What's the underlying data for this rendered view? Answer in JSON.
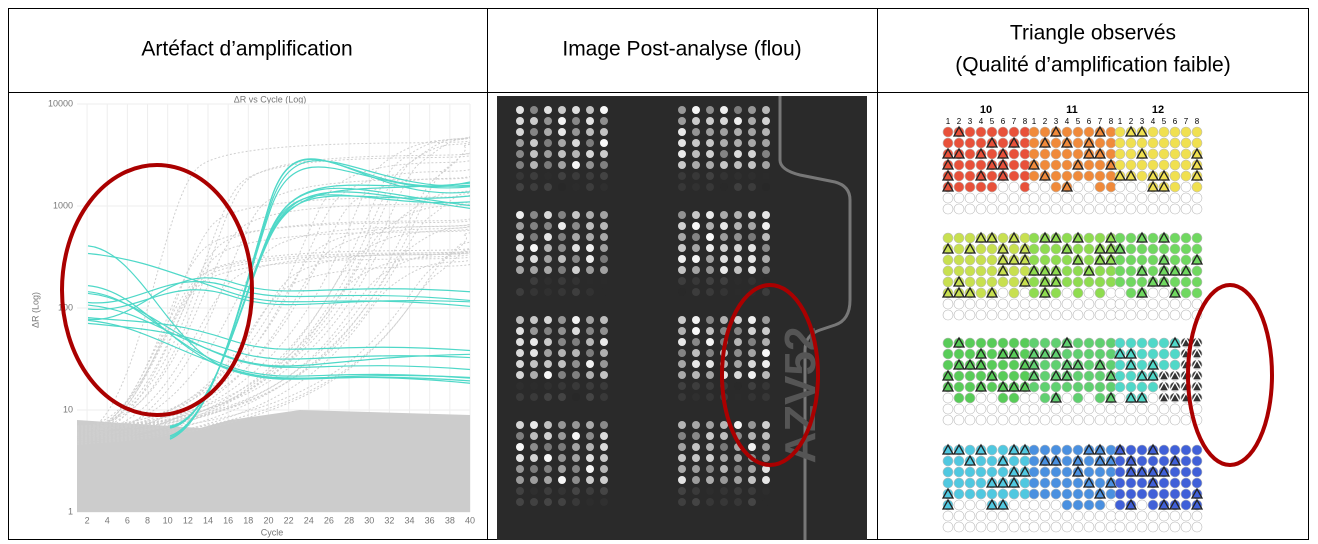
{
  "table": {
    "headers": [
      [
        "Artéfact d’amplification"
      ],
      [
        "Image Post-analyse (flou)"
      ],
      [
        "Triangle observés",
        "(Qualité d’amplification faible)"
      ]
    ]
  },
  "chart_data": {
    "type": "line",
    "title": "ΔR vs Cycle (Log)",
    "ylabel": "ΔR (Log)",
    "xlabel": "Cycle",
    "log_scale": true,
    "xlim": [
      1,
      40
    ],
    "ylim": [
      1,
      10000
    ],
    "yticks": [
      1,
      10,
      100,
      1000,
      10000
    ],
    "xticks": [
      2,
      4,
      6,
      8,
      10,
      12,
      14,
      16,
      18,
      20,
      22,
      24,
      26,
      28,
      30,
      32,
      34,
      36,
      38,
      40
    ]
  },
  "plate": {
    "label": "AZV52"
  },
  "plate_map": {
    "columns": [
      "10",
      "11",
      "12"
    ],
    "well_numbers": [
      "1",
      "2",
      "3",
      "4",
      "5",
      "6",
      "7",
      "8"
    ]
  }
}
